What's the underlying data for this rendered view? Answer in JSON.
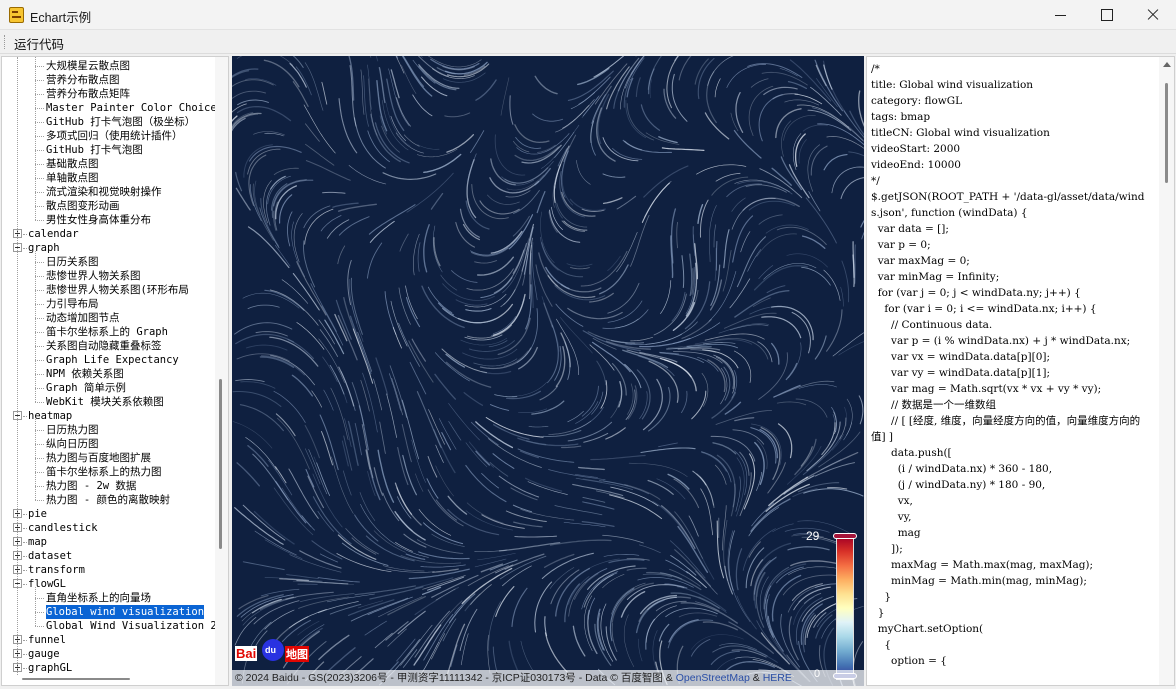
{
  "window": {
    "title": "Echart示例"
  },
  "menu": {
    "run_label": "运行代码"
  },
  "tree": [
    {
      "kind": "child",
      "label": "大规模星云散点图"
    },
    {
      "kind": "child",
      "label": "营养分布散点图"
    },
    {
      "kind": "child",
      "label": "营养分布散点矩阵"
    },
    {
      "kind": "child",
      "label": "Master Painter Color Choice"
    },
    {
      "kind": "child",
      "label": "GitHub 打卡气泡图（极坐标）"
    },
    {
      "kind": "child",
      "label": "多项式回归（使用统计插件）"
    },
    {
      "kind": "child",
      "label": "GitHub 打卡气泡图"
    },
    {
      "kind": "child",
      "label": "基础散点图"
    },
    {
      "kind": "child",
      "label": "单轴散点图"
    },
    {
      "kind": "child",
      "label": "流式渲染和视觉映射操作"
    },
    {
      "kind": "child",
      "label": "散点图变形动画"
    },
    {
      "kind": "child",
      "label": "男性女性身高体重分布"
    },
    {
      "kind": "parent",
      "state": "collapsed",
      "label": "calendar"
    },
    {
      "kind": "parent",
      "state": "expanded",
      "label": "graph"
    },
    {
      "kind": "child",
      "label": "日历关系图"
    },
    {
      "kind": "child",
      "label": "悲惨世界人物关系图"
    },
    {
      "kind": "child",
      "label": "悲惨世界人物关系图(环形布局"
    },
    {
      "kind": "child",
      "label": "力引导布局"
    },
    {
      "kind": "child",
      "label": "动态增加图节点"
    },
    {
      "kind": "child",
      "label": "笛卡尔坐标系上的 Graph"
    },
    {
      "kind": "child",
      "label": "关系图自动隐藏重叠标签"
    },
    {
      "kind": "child",
      "label": "Graph Life Expectancy"
    },
    {
      "kind": "child",
      "label": "NPM 依赖关系图"
    },
    {
      "kind": "child",
      "label": "Graph 简单示例"
    },
    {
      "kind": "child",
      "label": "WebKit 模块关系依赖图"
    },
    {
      "kind": "parent",
      "state": "expanded",
      "label": "heatmap"
    },
    {
      "kind": "child",
      "label": "日历热力图"
    },
    {
      "kind": "child",
      "label": "纵向日历图"
    },
    {
      "kind": "child",
      "label": "热力图与百度地图扩展"
    },
    {
      "kind": "child",
      "label": "笛卡尔坐标系上的热力图"
    },
    {
      "kind": "child",
      "label": "热力图 - 2w 数据"
    },
    {
      "kind": "child",
      "label": "热力图 - 颜色的离散映射"
    },
    {
      "kind": "parent",
      "state": "collapsed",
      "label": "pie"
    },
    {
      "kind": "parent",
      "state": "collapsed",
      "label": "candlestick"
    },
    {
      "kind": "parent",
      "state": "collapsed",
      "label": "map"
    },
    {
      "kind": "parent",
      "state": "collapsed",
      "label": "dataset"
    },
    {
      "kind": "parent",
      "state": "collapsed",
      "label": "transform"
    },
    {
      "kind": "parent",
      "state": "expanded",
      "label": "flowGL"
    },
    {
      "kind": "child",
      "label": "直角坐标系上的向量场"
    },
    {
      "kind": "child",
      "label": "Global wind visualization",
      "selected": true
    },
    {
      "kind": "child",
      "label": "Global Wind Visualization 2"
    },
    {
      "kind": "parent",
      "state": "collapsed",
      "label": "funnel"
    },
    {
      "kind": "parent",
      "state": "collapsed",
      "label": "gauge"
    },
    {
      "kind": "parent",
      "state": "collapsed",
      "label": "graphGL"
    }
  ],
  "map": {
    "legend_max": "29",
    "legend_min": "0",
    "baidu_logo_text": "Bai",
    "baidu_paw_text": "du",
    "baidu_ditu_text": "地图",
    "copyright_prefix": "© 2024 Baidu - GS(2023)3206号 - 甲测资字11111342 - 京ICP证030173号 - Data © 百度智图 & ",
    "copyright_osm": "OpenStreetMap",
    "copyright_sep": " & ",
    "copyright_here": "HERE"
  },
  "code": "/*\ntitle: Global wind visualization\ncategory: flowGL\ntags: bmap\ntitleCN: Global wind visualization\nvideoStart: 2000\nvideoEnd: 10000\n*/\n$.getJSON(ROOT_PATH + '/data-gl/asset/data/winds.json', function (windData) {\n  var data = [];\n  var p = 0;\n  var maxMag = 0;\n  var minMag = Infinity;\n  for (var j = 0; j < windData.ny; j++) {\n    for (var i = 0; i <= windData.nx; i++) {\n      // Continuous data.\n      var p = (i % windData.nx) + j * windData.nx;\n      var vx = windData.data[p][0];\n      var vy = windData.data[p][1];\n      var mag = Math.sqrt(vx * vx + vy * vy);\n      // 数据是一个一维数组\n      // [ [经度, 维度，向量经度方向的值，向量维度方向的值] ]\n      data.push([\n        (i / windData.nx) * 360 - 180,\n        (j / windData.ny) * 180 - 90,\n        vx,\n        vy,\n        mag\n      ]);\n      maxMag = Math.max(mag, maxMag);\n      minMag = Math.min(mag, minMag);\n    }\n  }\n  myChart.setOption(\n    {\n      option = {"
}
